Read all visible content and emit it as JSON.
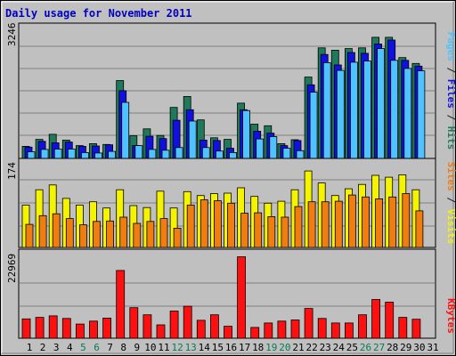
{
  "chart_data": {
    "type": "bar",
    "title": "Daily usage for November 2011",
    "categories": [
      "1",
      "2",
      "3",
      "4",
      "5",
      "6",
      "7",
      "8",
      "9",
      "10",
      "11",
      "12",
      "13",
      "14",
      "15",
      "16",
      "17",
      "18",
      "19",
      "20",
      "21",
      "22",
      "23",
      "24",
      "25",
      "26",
      "27",
      "28",
      "29",
      "30",
      "31"
    ],
    "weekend_days": [
      "5",
      "6",
      "12",
      "13",
      "19",
      "20",
      "26",
      "27"
    ],
    "panels": [
      {
        "max_label": "3246",
        "ylim": [
          0,
          3246
        ],
        "legend": [
          {
            "label": "Pages",
            "color": "#4fc3ff"
          },
          {
            "label": " / ",
            "color": "#202020"
          },
          {
            "label": "Files",
            "color": "#1010e0"
          },
          {
            "label": " / ",
            "color": "#202020"
          },
          {
            "label": "Hits",
            "color": "#1e7a5a"
          }
        ],
        "series": [
          {
            "name": "Hits",
            "color": "#1e7a5a",
            "values": [
              310,
              490,
              620,
              470,
              330,
              380,
              360,
              2000,
              580,
              760,
              590,
              1310,
              1590,
              990,
              530,
              490,
              1420,
              880,
              840,
              380,
              480,
              2090,
              2840,
              2780,
              2820,
              2840,
              3110,
              3110,
              2590,
              2440,
              0
            ]
          },
          {
            "name": "Files",
            "color": "#1010e0",
            "values": [
              290,
              440,
              400,
              420,
              310,
              320,
              350,
              1740,
              330,
              570,
              510,
              980,
              1250,
              470,
              460,
              260,
              1250,
              700,
              650,
              330,
              460,
              1890,
              2670,
              2400,
              2720,
              2700,
              2940,
              3040,
              2520,
              2370,
              0
            ]
          },
          {
            "name": "Pages",
            "color": "#4fc3ff",
            "values": [
              170,
              230,
              240,
              240,
              150,
              140,
              180,
              1440,
              330,
              230,
              210,
              280,
              960,
              280,
              190,
              150,
              1230,
              500,
              560,
              260,
              200,
              1700,
              2460,
              2260,
              2470,
              2500,
              2820,
              2520,
              2310,
              2250,
              0
            ]
          }
        ]
      },
      {
        "max_label": "174",
        "ylim": [
          0,
          174
        ],
        "legend": [
          {
            "label": "Sites",
            "color": "#f07d10"
          },
          {
            "label": " / ",
            "color": "#202020"
          },
          {
            "label": "Visits",
            "color": "#f4f400"
          }
        ],
        "series": [
          {
            "name": "Visits",
            "color": "#f4f400",
            "values": [
              88,
              120,
              130,
              102,
              88,
              95,
              82,
              120,
              87,
              83,
              117,
              82,
              116,
              108,
              112,
              113,
              124,
              106,
              92,
              96,
              120,
              159,
              134,
              108,
              122,
              131,
              150,
              146,
              151,
              120,
              0
            ]
          },
          {
            "name": "Sites",
            "color": "#f07d10",
            "values": [
              48,
              66,
              70,
              60,
              47,
              54,
              55,
              63,
              50,
              54,
              60,
              40,
              88,
              99,
              97,
              92,
              71,
              72,
              64,
              63,
              85,
              95,
              95,
              96,
              109,
              105,
              101,
              105,
              112,
              76,
              0
            ]
          }
        ]
      },
      {
        "max_label": "22969",
        "ylim": [
          0,
          22969
        ],
        "legend": [
          {
            "label": "KBytes",
            "color": "#ff1010"
          }
        ],
        "series": [
          {
            "name": "KBytes",
            "color": "#ff1010",
            "values": [
              5200,
              5600,
              6000,
              5300,
              3800,
              4600,
              5400,
              18200,
              8200,
              6300,
              3600,
              7300,
              8600,
              4800,
              6300,
              3200,
              21900,
              2900,
              4100,
              4600,
              4900,
              8000,
              5300,
              4100,
              4100,
              6300,
              10400,
              9700,
              5600,
              5100,
              0
            ]
          }
        ]
      }
    ]
  }
}
